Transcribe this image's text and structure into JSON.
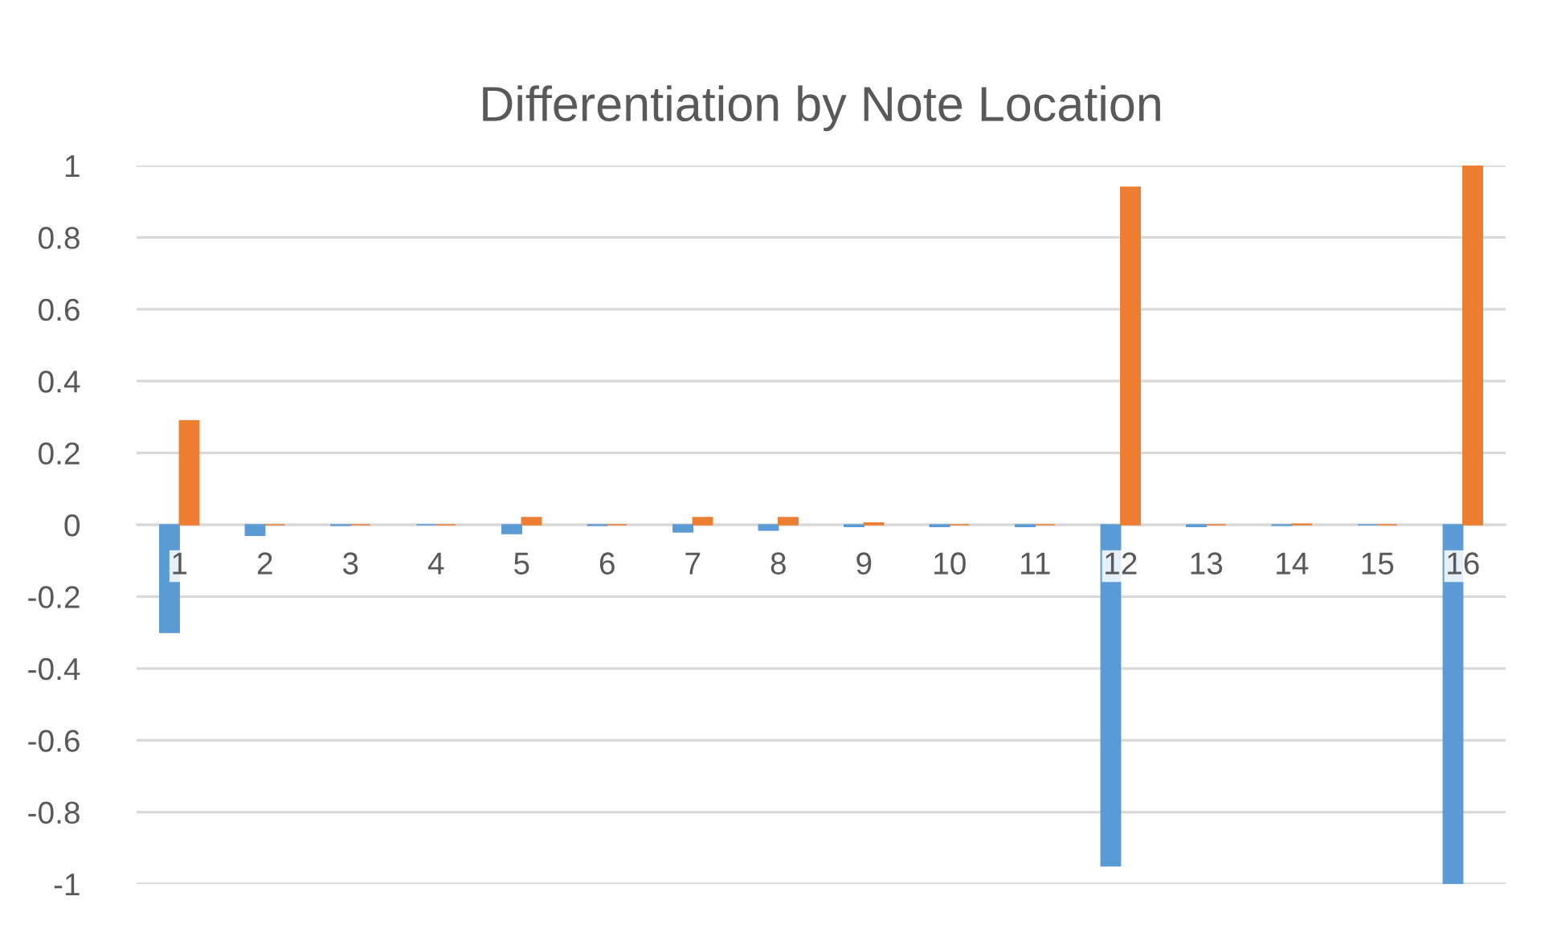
{
  "chart_data": {
    "type": "bar",
    "title": "Differentiation by Note Location",
    "categories": [
      "1",
      "2",
      "3",
      "4",
      "5",
      "6",
      "7",
      "8",
      "9",
      "10",
      "11",
      "12",
      "13",
      "14",
      "15",
      "16"
    ],
    "series": [
      {
        "color": "#5b9bd5",
        "values": [
          -0.3,
          -0.03,
          -0.002,
          0,
          -0.025,
          -0.002,
          -0.02,
          -0.015,
          -0.005,
          -0.005,
          -0.005,
          -0.95,
          -0.005,
          -0.002,
          0,
          -1
        ]
      },
      {
        "color": "#ed7d31",
        "values": [
          0.29,
          0,
          0,
          0,
          0.02,
          0,
          0.02,
          0.02,
          0.005,
          0,
          0,
          0.94,
          0,
          0.002,
          0,
          1
        ]
      }
    ],
    "ylim": [
      -1,
      1
    ],
    "yticks": [
      -1,
      -0.8,
      -0.6,
      -0.4,
      -0.2,
      0,
      0.2,
      0.4,
      0.6,
      0.8,
      1
    ],
    "grid": "y",
    "legend": false
  }
}
